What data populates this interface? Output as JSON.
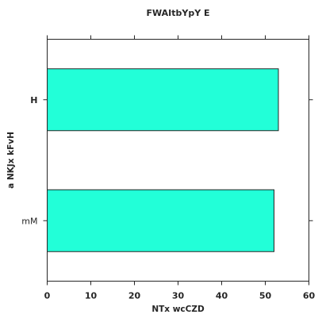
{
  "chart_data": {
    "type": "bar",
    "orientation": "horizontal",
    "title": "FWAItbYpY E",
    "xlabel": "NTx wcCZD",
    "ylabel": "a NKJx  kFvH",
    "categories": [
      "mM",
      "H"
    ],
    "category_label_bold": [
      false,
      true
    ],
    "values": [
      52,
      53
    ],
    "xlim": [
      0,
      60
    ],
    "xticks": [
      0,
      10,
      20,
      30,
      40,
      50,
      60
    ],
    "bar_color": "#22ffd8",
    "edge_color": "#262626",
    "grid": false,
    "legend": "none"
  }
}
